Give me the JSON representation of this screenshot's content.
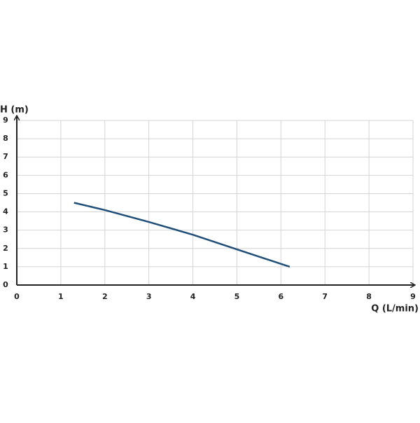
{
  "chart_data": {
    "type": "line",
    "x_label": "Q (L/min)",
    "y_label": "H (m)",
    "x": [
      1.3,
      2,
      3,
      4,
      5,
      6.2
    ],
    "values": [
      4.5,
      4.1,
      3.45,
      2.75,
      1.95,
      1.0
    ],
    "color": "#1f4e79",
    "xlim": [
      0,
      9
    ],
    "xticks": [
      0,
      1,
      2,
      3,
      4,
      5,
      6,
      7,
      8,
      9
    ],
    "ylim": [
      0,
      9
    ],
    "yticks": [
      0,
      1,
      2,
      3,
      4,
      5,
      6,
      7,
      8,
      9
    ],
    "grid": true
  }
}
